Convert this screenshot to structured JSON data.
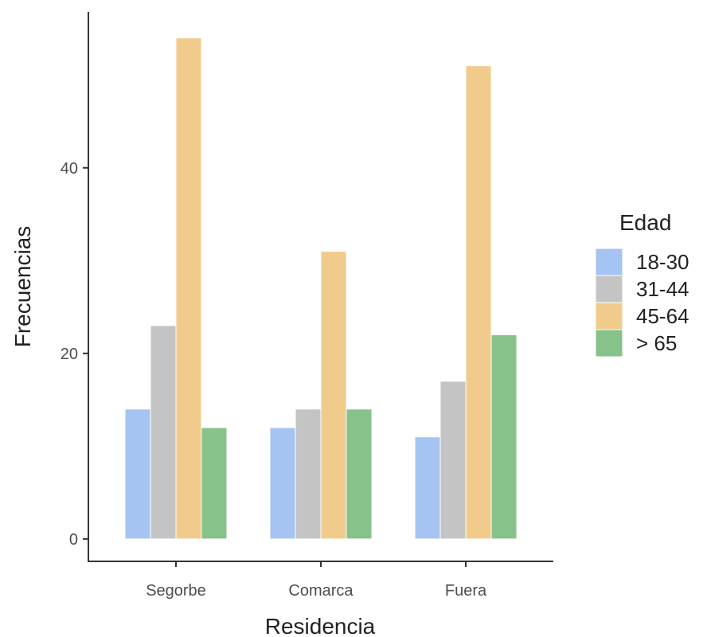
{
  "chart_data": {
    "type": "bar",
    "categories": [
      "Segorbe",
      "Comarca",
      "Fuera"
    ],
    "series": [
      {
        "name": "18-30",
        "values": [
          14,
          12,
          11
        ],
        "color": "#a6c4f2"
      },
      {
        "name": "31-44",
        "values": [
          23,
          14,
          17
        ],
        "color": "#c4c4c4"
      },
      {
        "name": "45-64",
        "values": [
          54,
          31,
          51
        ],
        "color": "#f1cb8c"
      },
      {
        "name": "> 65",
        "values": [
          12,
          14,
          22
        ],
        "color": "#87c28a"
      }
    ],
    "xlabel": "Residencia",
    "ylabel": "Frecuencias",
    "legend_title": "Edad",
    "legend_position": "right",
    "yticks": [
      0,
      20,
      40
    ],
    "ylim": [
      -2.5,
      56.8
    ],
    "grid": false
  }
}
